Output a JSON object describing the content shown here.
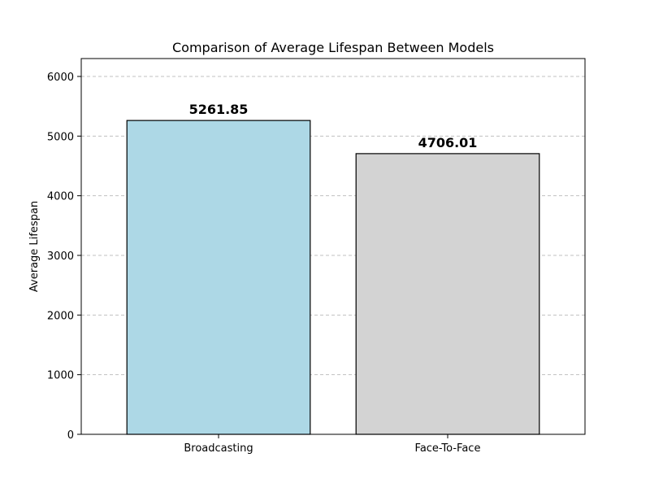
{
  "chart_data": {
    "type": "bar",
    "title": "Comparison of Average Lifespan Between Models",
    "xlabel": "",
    "ylabel": "Average Lifespan",
    "categories": [
      "Broadcasting",
      "Face-To-Face"
    ],
    "values": [
      5261.85,
      4706.01
    ],
    "value_labels": [
      "5261.85",
      "4706.01"
    ],
    "bar_colors": [
      "#add8e6",
      "#d3d3d3"
    ],
    "edge_color": "#000000",
    "ylim": [
      0,
      6300
    ],
    "yticks": [
      0,
      1000,
      2000,
      3000,
      4000,
      5000,
      6000
    ],
    "ytick_labels": [
      "0",
      "1000",
      "2000",
      "3000",
      "4000",
      "5000",
      "6000"
    ],
    "grid": "y-dashed"
  }
}
